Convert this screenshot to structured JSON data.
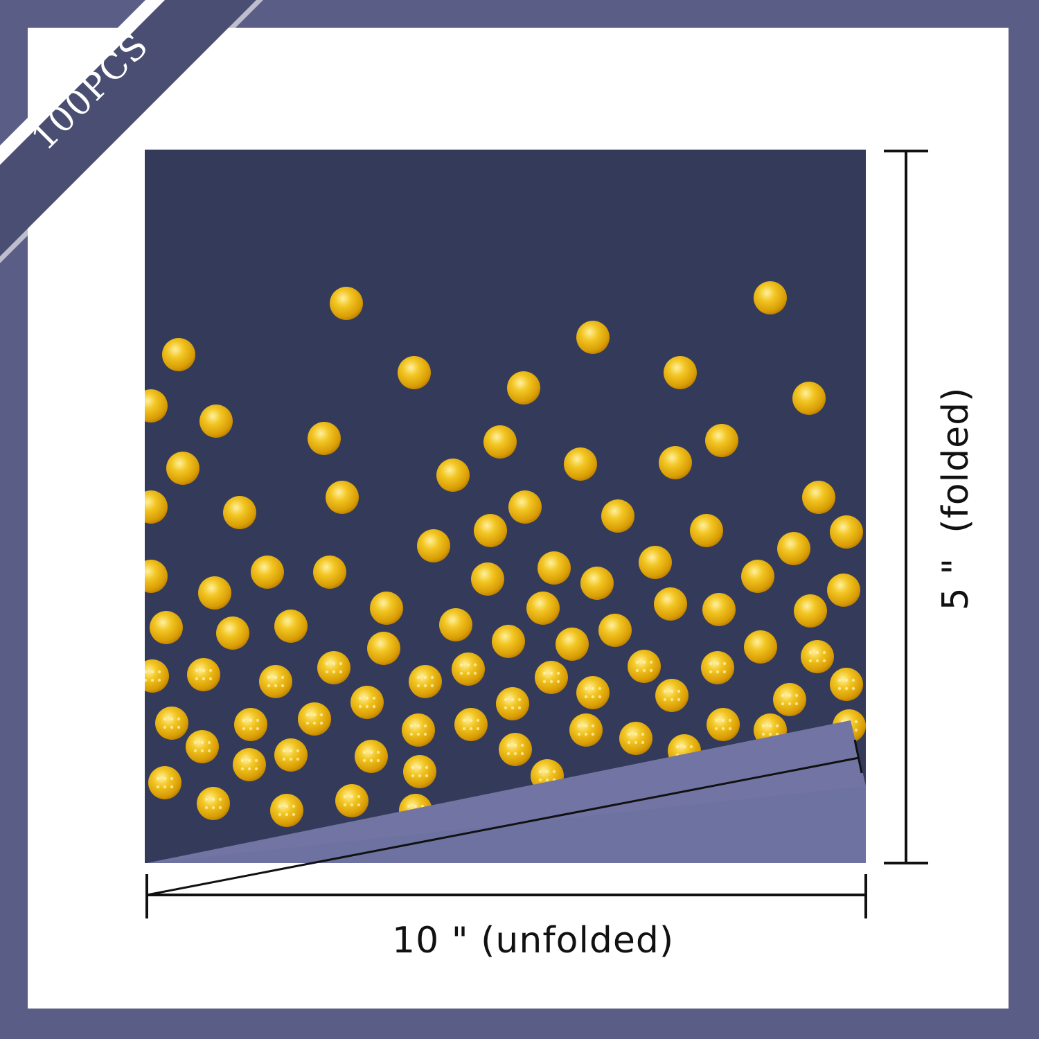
{
  "badge": {
    "label": "100PCS"
  },
  "dimensions": {
    "width_label": "10 \" (unfolded)",
    "height_label": "5 \"  (folded)"
  },
  "colors": {
    "background_border": "#5a5d86",
    "napkin_navy": "#343b5a",
    "napkin_fold": "#6f73a0",
    "dots_gold": "#e4b118",
    "dimension_lines": "#111111"
  },
  "product": {
    "pattern": "gold foil polka dots on navy napkin",
    "icon": "folded-napkin-corner"
  }
}
